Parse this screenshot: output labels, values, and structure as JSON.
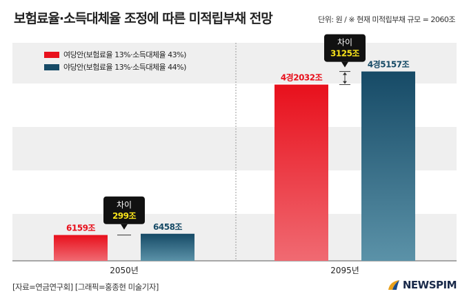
{
  "header": {
    "title": "보험료율·소득대체율 조정에 따른 미적립부채 전망",
    "unit_note": "단위: 원 / ※ 현재 미적립부채 규모 = 2060조"
  },
  "footer": {
    "source": "[자료=연금연구회] [그래픽=홍종현 미술기자]",
    "logo": "NEWSPIM"
  },
  "colors": {
    "ruling": "#e8101c",
    "opposition": "#164a66",
    "diff_box": "#111111",
    "diff_value": "#f7e21a"
  },
  "chart_data": {
    "type": "bar",
    "categories": [
      "2050년",
      "2095년"
    ],
    "series": [
      {
        "name": "여당안(보험료율 13%·소득대체율 43%)",
        "values": [
          6159,
          42032
        ],
        "labels": [
          "6159조",
          "4경2032조"
        ]
      },
      {
        "name": "야당안(보험료율 13%·소득대체율 44%)",
        "values": [
          6458,
          45157
        ],
        "labels": [
          "6458조",
          "4경5157조"
        ]
      }
    ],
    "differences": [
      {
        "caption": "차이",
        "value": "299조"
      },
      {
        "caption": "차이",
        "value": "3125조"
      }
    ],
    "ylim": [
      0,
      52000
    ],
    "grid": "alternating horizontal bands",
    "legend_position": "top-left"
  }
}
